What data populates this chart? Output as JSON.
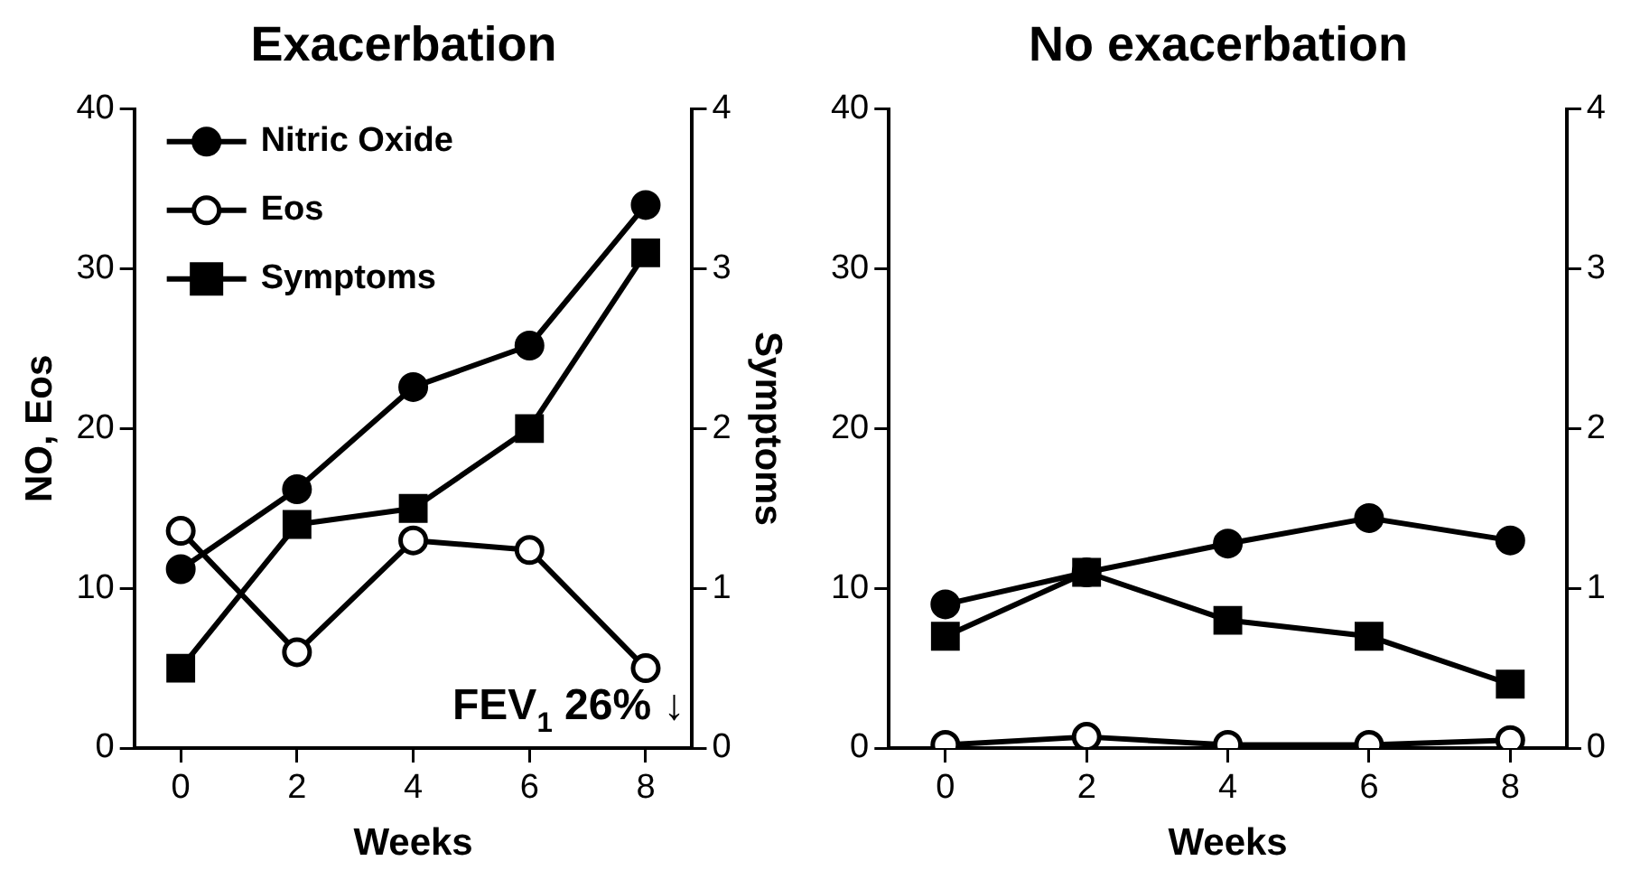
{
  "chart_data": [
    {
      "type": "line",
      "title": "Exacerbation",
      "xlabel": "Weeks",
      "ylabel": "NO, Eos",
      "y2label": "Symptoms",
      "x": [
        0,
        2,
        4,
        6,
        8
      ],
      "series": [
        {
          "name": "Nitric Oxide",
          "color": "#000000",
          "marker": "circle",
          "values": [
            11.2,
            16.2,
            22.6,
            25.2,
            34
          ]
        },
        {
          "name": "Eos",
          "color": "#000000",
          "marker": "circle",
          "colors": [
            "#ffffff",
            "#ffffff",
            "#ffffff",
            "#ffffff",
            "#ffffff"
          ],
          "values": [
            13.6,
            6,
            13,
            12.4,
            5
          ]
        },
        {
          "name": "Symptoms",
          "color": "#000000",
          "marker": "square",
          "axis": "y2",
          "values": [
            0.5,
            1.4,
            1.5,
            2.0,
            3.1
          ]
        }
      ],
      "xlim": [
        -0.8,
        8.8
      ],
      "xticks": [
        0,
        2,
        4,
        6,
        8
      ],
      "ylim": [
        0,
        40
      ],
      "yticks": [
        0,
        10,
        20,
        30,
        40
      ],
      "y2lim": [
        0,
        4
      ],
      "y2ticks": [
        0,
        1,
        2,
        3,
        4
      ],
      "grid": false,
      "legend": "top left",
      "annotations": [
        "FEV$_{1}$ 26% ↓"
      ]
    },
    {
      "type": "line",
      "title": "No exacerbation",
      "xlabel": "Weeks",
      "x": [
        0,
        2,
        4,
        6,
        8
      ],
      "series": [
        {
          "color": "#000000",
          "marker": "circle",
          "values": [
            9,
            11,
            12.8,
            14.4,
            13
          ]
        },
        {
          "color": "#000000",
          "marker": "circle",
          "colors": [
            "#ffffff",
            "#ffffff",
            "#ffffff",
            "#ffffff",
            "#ffffff"
          ],
          "values": [
            0.2,
            0.7,
            0.2,
            0.2,
            0.5
          ]
        },
        {
          "color": "#000000",
          "marker": "square",
          "axis": "y2",
          "values": [
            0.7,
            1.1,
            0.8,
            0.7,
            0.4
          ]
        }
      ],
      "xlim": [
        -0.8,
        8.8
      ],
      "xticks": [
        0,
        2,
        4,
        6,
        8
      ],
      "ylim": [
        0,
        40
      ],
      "yticks": [
        0,
        10,
        20,
        30,
        40
      ],
      "y2lim": [
        0,
        4
      ],
      "y2ticks": [
        0,
        1,
        2,
        3,
        4
      ],
      "grid": false,
      "legend": false
    }
  ]
}
